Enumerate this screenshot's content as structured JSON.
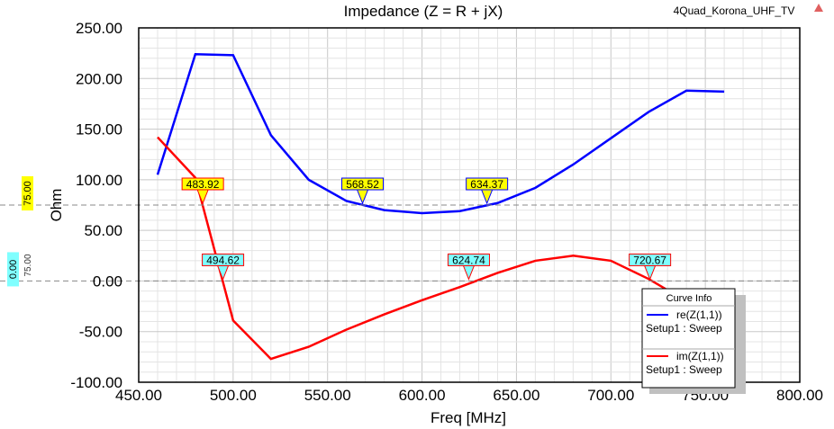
{
  "project_name": "4Quad_Korona_UHF_TV",
  "chart_data": {
    "type": "line",
    "title": "Impedance (Z = R + jX)",
    "xlabel": "Freq [MHz]",
    "ylabel": "Ohm",
    "xlim": [
      450,
      800
    ],
    "ylim": [
      -100,
      250
    ],
    "xticks": [
      "450.00",
      "500.00",
      "550.00",
      "600.00",
      "650.00",
      "700.00",
      "750.00",
      "800.00"
    ],
    "yticks": [
      "-100.00",
      "-50.00",
      "0.00",
      "50.00",
      "100.00",
      "150.00",
      "200.00",
      "250.00"
    ],
    "grid": true,
    "series": [
      {
        "name": "re(Z(1,1))",
        "sub": "Setup1 : Sweep",
        "color": "#0000ff",
        "x": [
          460,
          480,
          500,
          520,
          540,
          560,
          580,
          600,
          620,
          640,
          660,
          680,
          700,
          720,
          740,
          760
        ],
        "y": [
          105,
          224,
          223,
          144,
          100,
          79,
          70,
          67,
          69,
          77,
          92,
          115,
          141,
          167,
          188,
          187
        ]
      },
      {
        "name": "im(Z(1,1))",
        "sub": "Setup1 : Sweep",
        "color": "#ff0000",
        "x": [
          460,
          480,
          500,
          520,
          540,
          560,
          580,
          600,
          620,
          640,
          660,
          680,
          700,
          720,
          740
        ],
        "y": [
          142,
          102,
          -39,
          -77,
          -65,
          -48,
          -33,
          -19,
          -6,
          8,
          20,
          25,
          20,
          2,
          -20
        ]
      }
    ],
    "hlines": [
      {
        "value": 75,
        "label": "75.00",
        "color": "#ffff00"
      },
      {
        "value": 0,
        "label": "0.00",
        "color": "#80ffff"
      }
    ],
    "side_label": "75.00",
    "markers": [
      {
        "x": 483.92,
        "y": 75,
        "label": "483.92",
        "color": "#ffff00",
        "border": "#ff0000"
      },
      {
        "x": 568.52,
        "y": 75,
        "label": "568.52",
        "color": "#ffff00",
        "border": "#0000ff"
      },
      {
        "x": 634.37,
        "y": 75,
        "label": "634.37",
        "color": "#ffff00",
        "border": "#0000ff"
      },
      {
        "x": 494.62,
        "y": 0,
        "label": "494.62",
        "color": "#80ffff",
        "border": "#ff0000"
      },
      {
        "x": 624.74,
        "y": 0,
        "label": "624.74",
        "color": "#80ffff",
        "border": "#ff0000"
      },
      {
        "x": 720.67,
        "y": 0,
        "label": "720.67",
        "color": "#80ffff",
        "border": "#ff0000"
      }
    ],
    "legend": {
      "title": "Curve Info",
      "placement": "bottom-right"
    }
  }
}
